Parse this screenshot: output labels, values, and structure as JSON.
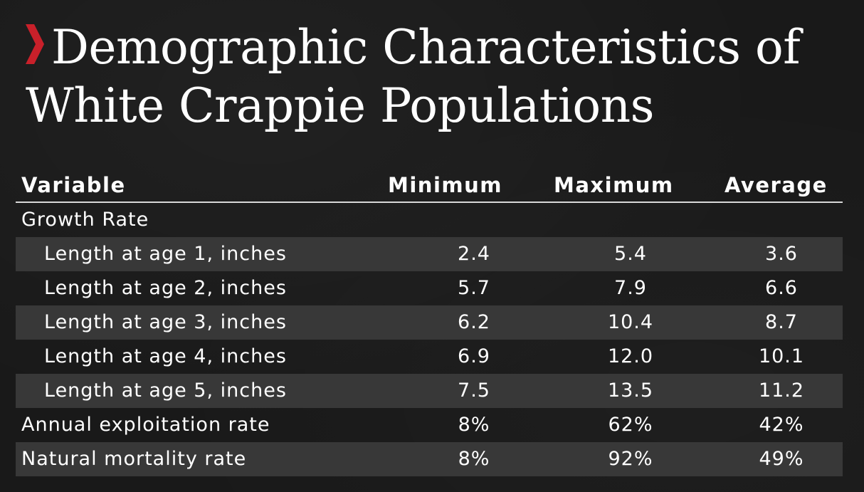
{
  "title_line1": "Demographic Characteristics of",
  "title_line2": "White Crappie Populations",
  "accent_color": "#c8202a",
  "chart_data": {
    "type": "table",
    "title": "Demographic Characteristics of White Crappie Populations",
    "columns": [
      "Variable",
      "Minimum",
      "Maximum",
      "Average"
    ],
    "rows": [
      {
        "variable": "Growth Rate",
        "minimum": "",
        "maximum": "",
        "average": "",
        "indent": false,
        "shaded": false
      },
      {
        "variable": "Length at age 1, inches",
        "minimum": "2.4",
        "maximum": "5.4",
        "average": "3.6",
        "indent": true,
        "shaded": true
      },
      {
        "variable": "Length at age 2, inches",
        "minimum": "5.7",
        "maximum": "7.9",
        "average": "6.6",
        "indent": true,
        "shaded": false
      },
      {
        "variable": "Length at age 3, inches",
        "minimum": "6.2",
        "maximum": "10.4",
        "average": "8.7",
        "indent": true,
        "shaded": true
      },
      {
        "variable": "Length at age 4, inches",
        "minimum": "6.9",
        "maximum": "12.0",
        "average": "10.1",
        "indent": true,
        "shaded": false
      },
      {
        "variable": "Length at age 5, inches",
        "minimum": "7.5",
        "maximum": "13.5",
        "average": "11.2",
        "indent": true,
        "shaded": true
      },
      {
        "variable": "Annual exploitation rate",
        "minimum": "8%",
        "maximum": "62%",
        "average": "42%",
        "indent": false,
        "shaded": false
      },
      {
        "variable": "Natural mortality rate",
        "minimum": "8%",
        "maximum": "92%",
        "average": "49%",
        "indent": false,
        "shaded": true
      }
    ]
  }
}
